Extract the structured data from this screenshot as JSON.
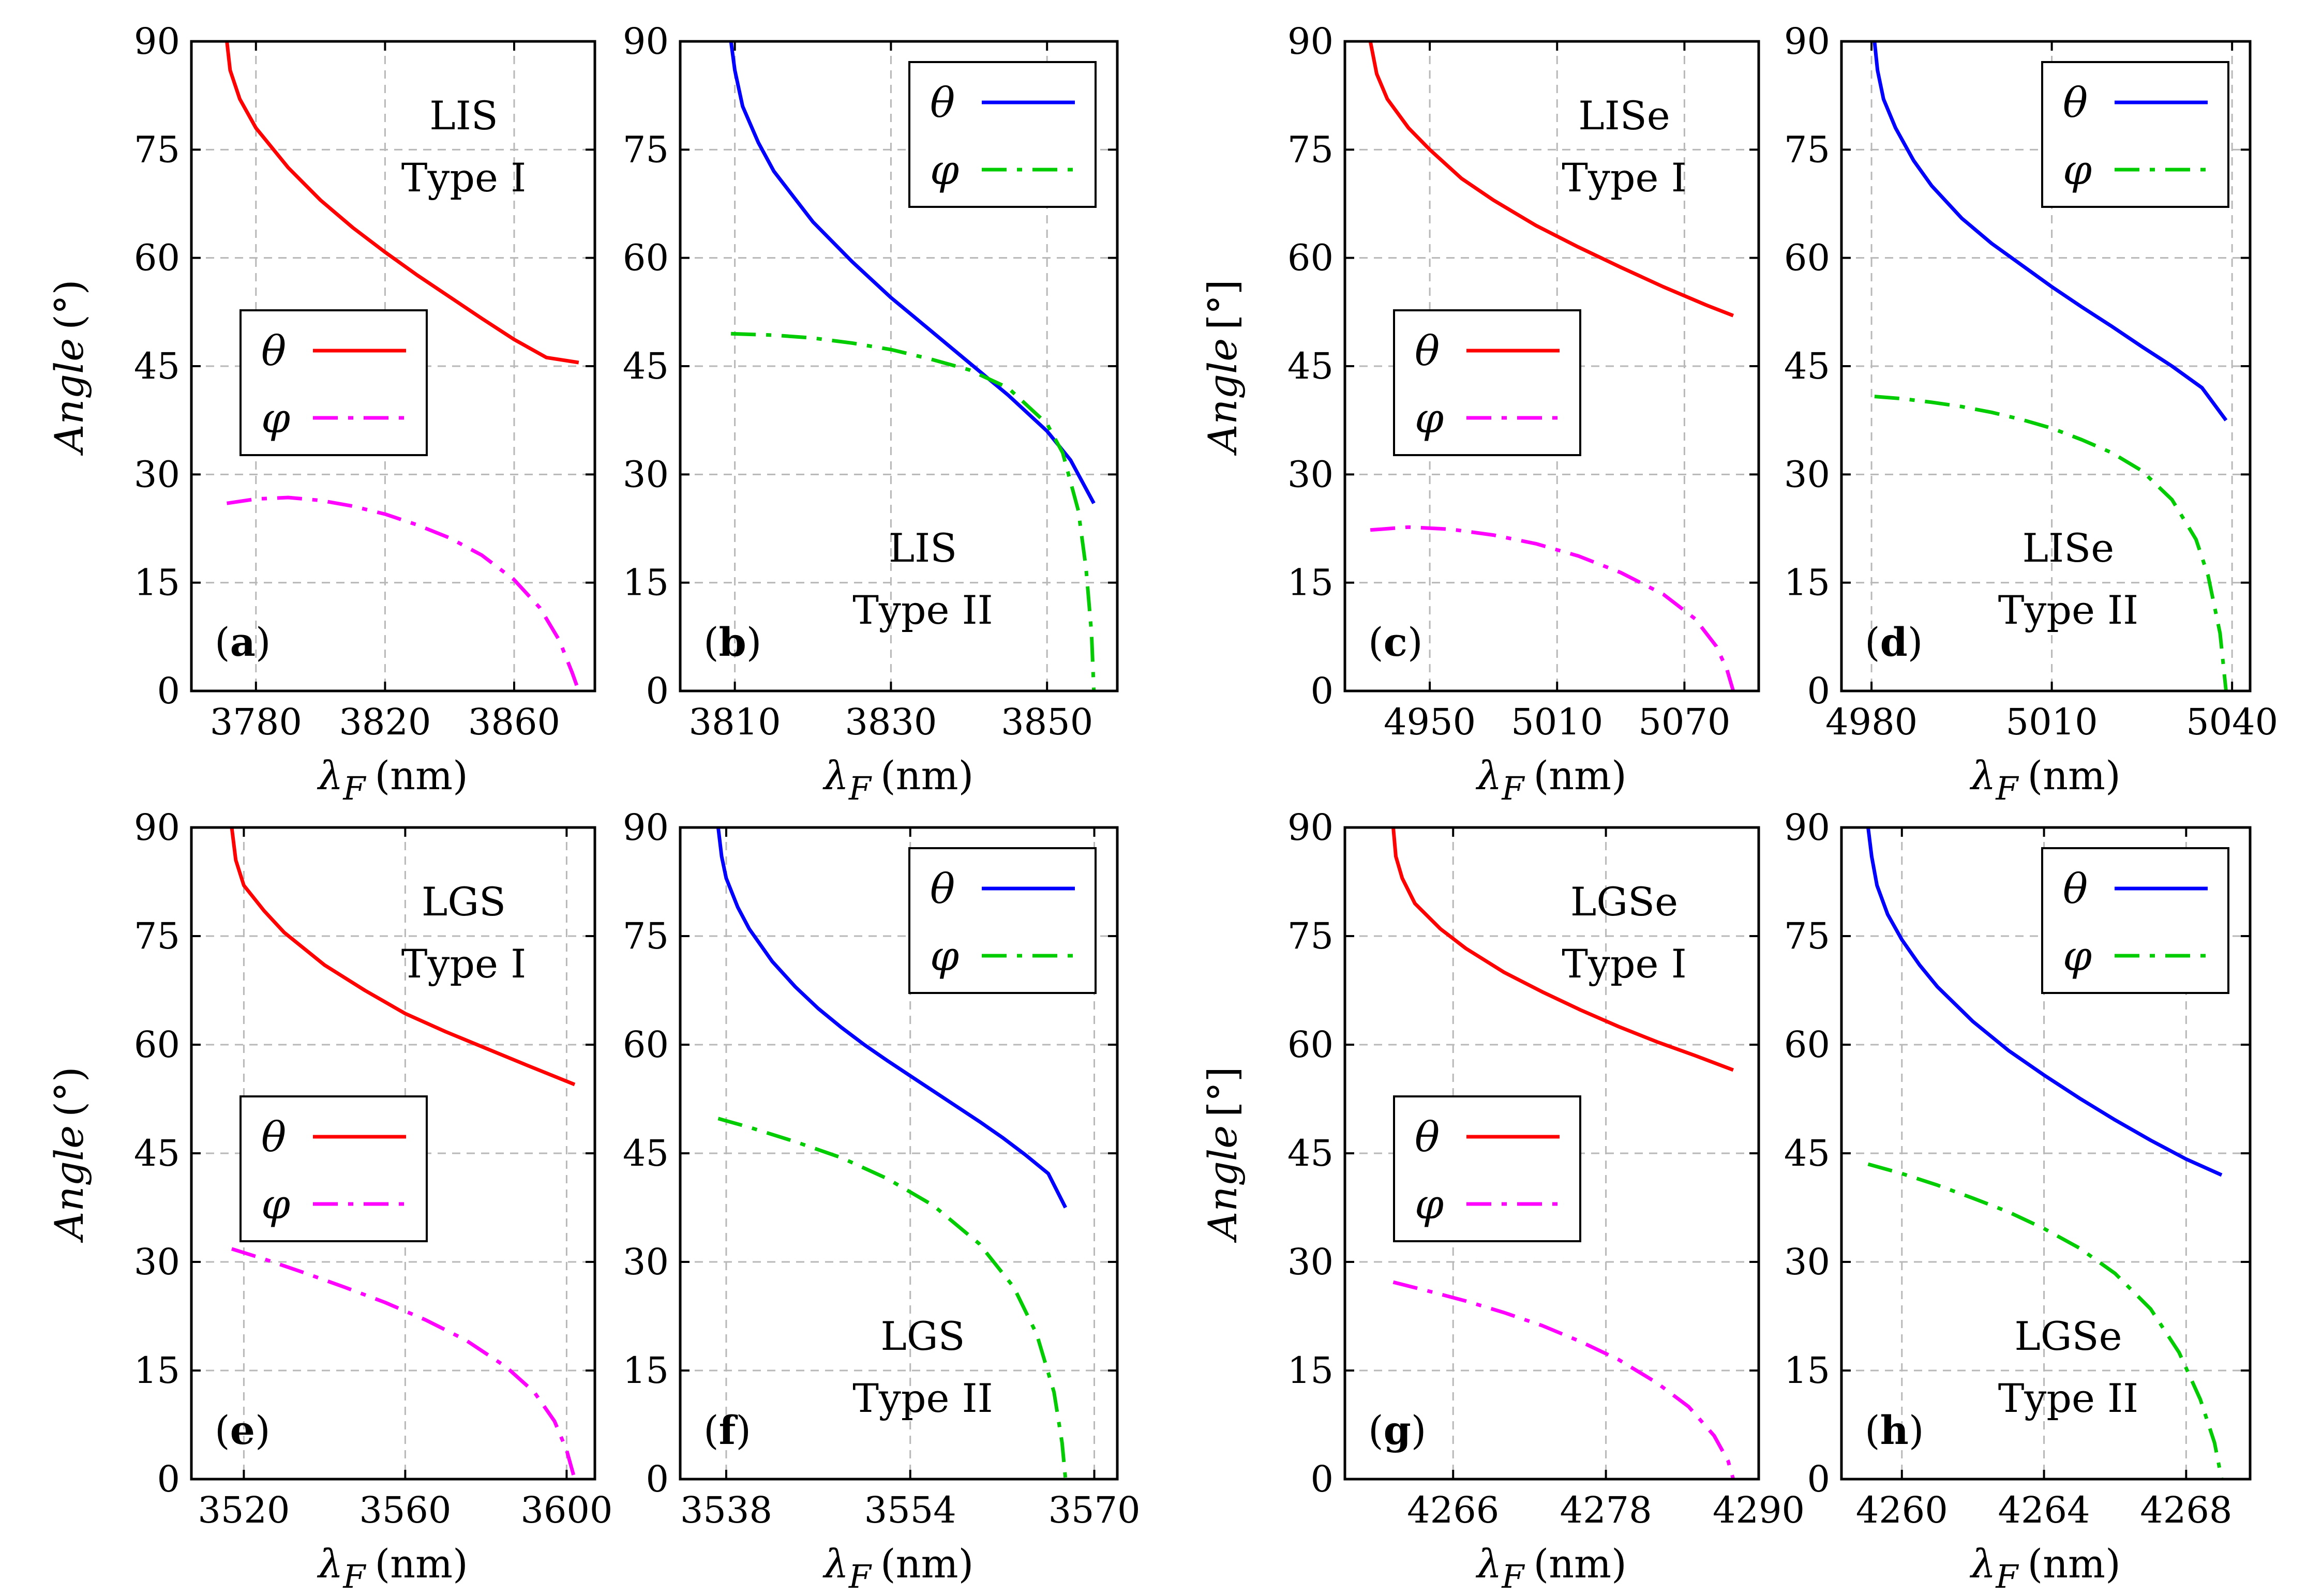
{
  "chart_data": [
    {
      "panel": "a",
      "type": "line",
      "xlim": [
        3760,
        3885
      ],
      "xticks": [
        3780,
        3820,
        3860
      ],
      "ylim": [
        0,
        90
      ],
      "yticks": [
        0,
        15,
        30,
        45,
        60,
        75,
        90
      ],
      "ylabel_word": "Angle",
      "ylabel_unit": "(°)",
      "xlabel_symbol": "λ",
      "xlabel_sub": "F",
      "xlabel_unit": "(nm)",
      "label_line1": "LIS",
      "label_line2": "Type I",
      "label_pos": "top-right",
      "legend_position": "middle-left",
      "grid": true,
      "series": [
        {
          "name": "θ",
          "color": "#ff0000",
          "dash": "solid",
          "x": [
            3771,
            3772,
            3775,
            3780,
            3790,
            3800,
            3810,
            3820,
            3830,
            3840,
            3850,
            3860,
            3870,
            3880
          ],
          "y": [
            90,
            86,
            82,
            78,
            72.5,
            68,
            64.2,
            60.8,
            57.6,
            54.6,
            51.6,
            48.7,
            46.2,
            45.5
          ]
        },
        {
          "name": "φ",
          "color": "#ff00ff",
          "dash": "dashdot",
          "x": [
            3771,
            3780,
            3790,
            3800,
            3810,
            3820,
            3830,
            3840,
            3850,
            3860,
            3868,
            3874,
            3878,
            3880
          ],
          "y": [
            26,
            26.6,
            26.8,
            26.4,
            25.6,
            24.5,
            23,
            21.2,
            18.8,
            15.4,
            11.5,
            7,
            2.5,
            0
          ]
        }
      ]
    },
    {
      "panel": "b",
      "type": "line",
      "xlim": [
        3803,
        3859
      ],
      "xticks": [
        3810,
        3830,
        3850
      ],
      "ylim": [
        0,
        90
      ],
      "yticks": [
        0,
        15,
        30,
        45,
        60,
        75,
        90
      ],
      "xlabel_symbol": "λ",
      "xlabel_sub": "F",
      "xlabel_unit": "(nm)",
      "label_line1": "LIS",
      "label_line2": "Type II",
      "label_pos": "bottom-middle",
      "legend_position": "top-right",
      "grid": true,
      "series": [
        {
          "name": "θ",
          "color": "#0000ff",
          "dash": "solid",
          "x": [
            3809.5,
            3810,
            3811,
            3813,
            3815,
            3820,
            3825,
            3830,
            3835,
            3840,
            3845,
            3850,
            3853,
            3856
          ],
          "y": [
            90,
            86,
            81,
            76,
            72,
            65,
            59.5,
            54.5,
            50,
            45.5,
            41,
            36,
            32,
            26
          ]
        },
        {
          "name": "φ",
          "color": "#00cc00",
          "dash": "dashdot",
          "x": [
            3809.5,
            3815,
            3820,
            3825,
            3830,
            3835,
            3840,
            3845,
            3850,
            3852,
            3854,
            3855,
            3855.7,
            3856
          ],
          "y": [
            49.5,
            49.3,
            48.9,
            48.2,
            47.3,
            46,
            44.5,
            42,
            37,
            33,
            25,
            17,
            8,
            0
          ]
        }
      ]
    },
    {
      "panel": "c",
      "type": "line",
      "xlim": [
        4910,
        5105
      ],
      "xticks": [
        4950,
        5010,
        5070
      ],
      "ylim": [
        0,
        90
      ],
      "yticks": [
        0,
        15,
        30,
        45,
        60,
        75,
        90
      ],
      "ylabel_word": "Angle",
      "ylabel_unit": "[°]",
      "xlabel_symbol": "λ",
      "xlabel_sub": "F",
      "xlabel_unit": "(nm)",
      "label_line1": "LISe",
      "label_line2": "Type I",
      "label_pos": "top-right",
      "legend_position": "middle-left",
      "grid": true,
      "series": [
        {
          "name": "θ",
          "color": "#ff0000",
          "dash": "solid",
          "x": [
            4922,
            4925,
            4930,
            4940,
            4950,
            4965,
            4980,
            5000,
            5020,
            5040,
            5060,
            5080,
            5093
          ],
          "y": [
            90,
            85.5,
            82,
            78,
            75,
            71,
            68,
            64.5,
            61.5,
            58.7,
            56,
            53.5,
            52
          ]
        },
        {
          "name": "φ",
          "color": "#ff00ff",
          "dash": "dashdot",
          "x": [
            4922,
            4940,
            4960,
            4980,
            5000,
            5020,
            5040,
            5060,
            5075,
            5085,
            5090,
            5093
          ],
          "y": [
            22.3,
            22.7,
            22.4,
            21.6,
            20.4,
            18.7,
            16.4,
            13.4,
            10,
            6.2,
            3,
            0
          ]
        }
      ]
    },
    {
      "panel": "d",
      "type": "line",
      "xlim": [
        4975,
        5043
      ],
      "xticks": [
        4980,
        5010,
        5040
      ],
      "ylim": [
        0,
        90
      ],
      "yticks": [
        0,
        15,
        30,
        45,
        60,
        75,
        90
      ],
      "xlabel_symbol": "λ",
      "xlabel_sub": "F",
      "xlabel_unit": "(nm)",
      "label_line1": "LISe",
      "label_line2": "Type II",
      "label_pos": "bottom-middle",
      "legend_position": "top-right",
      "grid": true,
      "series": [
        {
          "name": "θ",
          "color": "#0000ff",
          "dash": "solid",
          "x": [
            4980.5,
            4981,
            4982,
            4984,
            4987,
            4990,
            4995,
            5000,
            5005,
            5010,
            5015,
            5020,
            5025,
            5030,
            5035,
            5039
          ],
          "y": [
            90,
            86,
            82,
            78,
            73.5,
            70,
            65.5,
            62,
            59,
            56,
            53.2,
            50.5,
            47.7,
            45,
            42,
            37.5
          ]
        },
        {
          "name": "φ",
          "color": "#00cc00",
          "dash": "dashdot",
          "x": [
            4980.5,
            4985,
            4990,
            4995,
            5000,
            5005,
            5010,
            5015,
            5020,
            5025,
            5030,
            5034,
            5036,
            5038,
            5039
          ],
          "y": [
            40.8,
            40.5,
            40,
            39.4,
            38.6,
            37.6,
            36.4,
            34.8,
            33,
            30.5,
            26.5,
            21,
            16,
            8,
            0
          ]
        }
      ]
    },
    {
      "panel": "e",
      "type": "line",
      "xlim": [
        3507,
        3607
      ],
      "xticks": [
        3520,
        3560,
        3600
      ],
      "ylim": [
        0,
        90
      ],
      "yticks": [
        0,
        15,
        30,
        45,
        60,
        75,
        90
      ],
      "ylabel_word": "Angle",
      "ylabel_unit": "(°)",
      "xlabel_symbol": "λ",
      "xlabel_sub": "F",
      "xlabel_unit": "(nm)",
      "label_line1": "LGS",
      "label_line2": "Type I",
      "label_pos": "top-right",
      "legend_position": "middle-left",
      "grid": true,
      "series": [
        {
          "name": "θ",
          "color": "#ff0000",
          "dash": "solid",
          "x": [
            3517,
            3518,
            3520,
            3525,
            3530,
            3540,
            3550,
            3560,
            3570,
            3580,
            3590,
            3602
          ],
          "y": [
            90,
            85.5,
            82,
            78.5,
            75.5,
            71,
            67.5,
            64.3,
            61.8,
            59.5,
            57.2,
            54.5
          ]
        },
        {
          "name": "φ",
          "color": "#ff00ff",
          "dash": "dashdot",
          "x": [
            3517,
            3525,
            3535,
            3545,
            3555,
            3565,
            3575,
            3585,
            3592,
            3597,
            3600,
            3602
          ],
          "y": [
            31.8,
            30.4,
            28.5,
            26.5,
            24.4,
            22,
            19.2,
            15.5,
            12,
            8,
            4,
            0
          ]
        }
      ]
    },
    {
      "panel": "f",
      "type": "line",
      "xlim": [
        3534,
        3572
      ],
      "xticks": [
        3538,
        3554,
        3570
      ],
      "ylim": [
        0,
        90
      ],
      "yticks": [
        0,
        15,
        30,
        45,
        60,
        75,
        90
      ],
      "xlabel_symbol": "λ",
      "xlabel_sub": "F",
      "xlabel_unit": "(nm)",
      "label_line1": "LGS",
      "label_line2": "Type II",
      "label_pos": "bottom-middle",
      "legend_position": "top-right",
      "grid": true,
      "series": [
        {
          "name": "θ",
          "color": "#0000ff",
          "dash": "solid",
          "x": [
            3537.3,
            3537.6,
            3538,
            3539,
            3540,
            3542,
            3544,
            3546,
            3548,
            3550,
            3552,
            3554,
            3556,
            3558,
            3560,
            3562,
            3564,
            3566,
            3567.5
          ],
          "y": [
            90,
            86,
            83,
            79,
            76,
            71.5,
            68,
            65,
            62.4,
            60,
            57.8,
            55.7,
            53.6,
            51.5,
            49.4,
            47.2,
            44.8,
            42.2,
            37.5
          ]
        },
        {
          "name": "φ",
          "color": "#00cc00",
          "dash": "dashdot",
          "x": [
            3537.3,
            3540,
            3544,
            3548,
            3552,
            3556,
            3560,
            3563,
            3565,
            3566.5,
            3567.2,
            3567.5
          ],
          "y": [
            49.8,
            48.6,
            46.6,
            44.4,
            41.5,
            37.8,
            32.5,
            26.5,
            20,
            12,
            5,
            0
          ]
        }
      ]
    },
    {
      "panel": "g",
      "type": "line",
      "xlim": [
        4257.5,
        4290
      ],
      "xticks": [
        4266,
        4278,
        4290
      ],
      "ylim": [
        0,
        90
      ],
      "yticks": [
        0,
        15,
        30,
        45,
        60,
        75,
        90
      ],
      "ylabel_word": "Angle",
      "ylabel_unit": "[°]",
      "xlabel_symbol": "λ",
      "xlabel_sub": "F",
      "xlabel_unit": "(nm)",
      "label_line1": "LGSe",
      "label_line2": "Type I",
      "label_pos": "top-right",
      "legend_position": "middle-left",
      "grid": true,
      "series": [
        {
          "name": "θ",
          "color": "#ff0000",
          "dash": "solid",
          "x": [
            4261.3,
            4261.5,
            4262,
            4263,
            4265,
            4267,
            4270,
            4273,
            4276,
            4279,
            4282,
            4285,
            4288
          ],
          "y": [
            90,
            86,
            83,
            79.5,
            76,
            73.3,
            70,
            67.3,
            64.8,
            62.5,
            60.4,
            58.5,
            56.5
          ]
        },
        {
          "name": "φ",
          "color": "#ff00ff",
          "dash": "dashdot",
          "x": [
            4261.3,
            4264,
            4267,
            4270,
            4273,
            4276,
            4279,
            4282,
            4284.5,
            4286.5,
            4287.6,
            4288
          ],
          "y": [
            27.2,
            26,
            24.6,
            23,
            21.2,
            19,
            16.5,
            13.3,
            10,
            6,
            2.5,
            0
          ]
        }
      ]
    },
    {
      "panel": "h",
      "type": "line",
      "xlim": [
        4258.3,
        4269.8
      ],
      "xticks": [
        4260,
        4264,
        4268
      ],
      "ylim": [
        0,
        90
      ],
      "yticks": [
        0,
        15,
        30,
        45,
        60,
        75,
        90
      ],
      "xlabel_symbol": "λ",
      "xlabel_sub": "F",
      "xlabel_unit": "(nm)",
      "label_line1": "LGSe",
      "label_line2": "Type II",
      "label_pos": "bottom-middle",
      "legend_position": "top-right",
      "grid": true,
      "series": [
        {
          "name": "θ",
          "color": "#0000ff",
          "dash": "solid",
          "x": [
            4259.05,
            4259.15,
            4259.3,
            4259.6,
            4260,
            4260.5,
            4261,
            4262,
            4263,
            4264,
            4265,
            4266,
            4267,
            4268,
            4269
          ],
          "y": [
            90,
            86,
            82,
            78,
            74.5,
            71,
            68,
            63.2,
            59.2,
            55.8,
            52.6,
            49.6,
            46.8,
            44.2,
            42
          ]
        },
        {
          "name": "φ",
          "color": "#00cc00",
          "dash": "dashdot",
          "x": [
            4259.05,
            4260,
            4261,
            4262,
            4263,
            4264,
            4265,
            4266,
            4267,
            4267.8,
            4268.4,
            4268.8,
            4269
          ],
          "y": [
            43.5,
            42.2,
            40.6,
            38.8,
            36.9,
            34.6,
            31.9,
            28.4,
            23.5,
            17.5,
            11,
            5,
            0
          ]
        }
      ]
    }
  ]
}
